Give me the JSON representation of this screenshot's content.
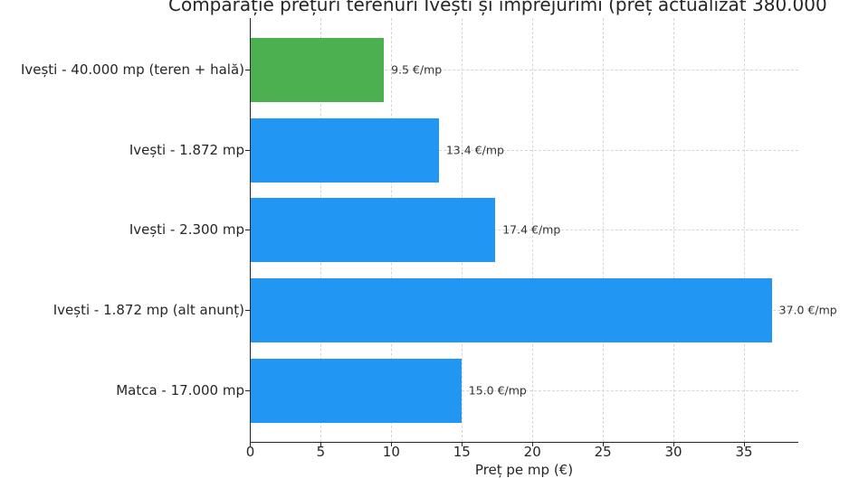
{
  "chart_data": {
    "type": "bar",
    "orientation": "horizontal",
    "title": "Comparație prețuri terenuri Ivești și împrejurimi (preț actualizat 380.000",
    "xlabel": "Preț pe mp (€)",
    "ylabel": "",
    "xlim": [
      0,
      38.9
    ],
    "xticks": [
      0,
      5,
      10,
      15,
      20,
      25,
      30,
      35
    ],
    "grid": true,
    "categories": [
      "Ivești - 40.000 mp (teren + hală)",
      "Ivești - 1.872 mp",
      "Ivești - 2.300 mp",
      "Ivești - 1.872 mp (alt anunț)",
      "Matca - 17.000 mp"
    ],
    "values": [
      9.5,
      13.4,
      17.4,
      37.0,
      15.0
    ],
    "data_labels": [
      "9.5 €/mp",
      "13.4 €/mp",
      "17.4 €/mp",
      "37.0 €/mp",
      "15.0 €/mp"
    ],
    "colors": [
      "#4caf50",
      "#2196f3",
      "#2196f3",
      "#2196f3",
      "#2196f3"
    ]
  }
}
